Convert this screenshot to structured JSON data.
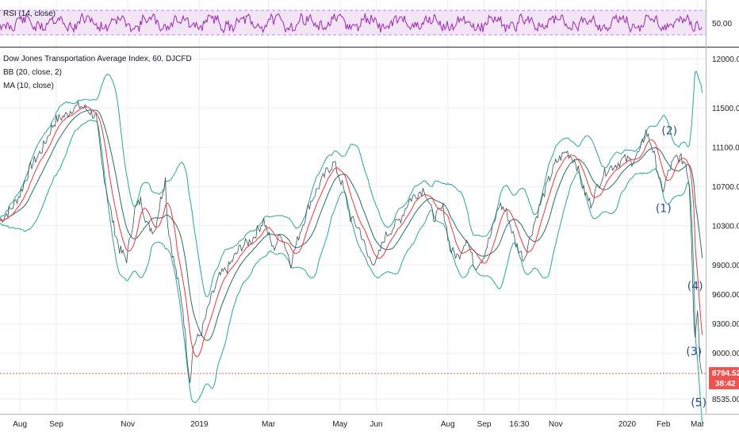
{
  "rsi": {
    "label": "RSI (14, close)",
    "tick": "50.00",
    "color": "#9c27b0",
    "band_fill": "#f3e5f5"
  },
  "legend": {
    "title": "Dow Jones Transportation Average Index, 60, DJCFD",
    "bb": "BB (20, close, 2)",
    "ma": "MA (10, close)"
  },
  "price": {
    "last": "8794.52",
    "countdown": "38:42",
    "tag_color": "#ef5350"
  },
  "colors": {
    "bb_band": "#26a69a",
    "bb_basis": "#2b6a6a",
    "ma": "#e53935",
    "grid": "#eceff2"
  },
  "waves": [
    {
      "label": "(1)",
      "date": "2020-02-01",
      "value": 10440
    },
    {
      "label": "(2)",
      "date": "2020-02-06",
      "value": 11230
    },
    {
      "label": "(3)",
      "date": "2020-02-27",
      "value": 8980
    },
    {
      "label": "(4)",
      "date": "2020-02-28",
      "value": 9650
    },
    {
      "label": "(5)",
      "date": "2020-03-02",
      "value": 8460
    }
  ],
  "chart_data": {
    "type": "line",
    "title": "Dow Jones Transportation Average Index, 60, DJCFD",
    "ylim": [
      8400,
      12100
    ],
    "yticks": [
      12000,
      11500,
      11100,
      10700,
      10300,
      9900,
      9600,
      9300,
      9000,
      8535
    ],
    "ytick_labels": [
      "12000.00",
      "11500.00",
      "11100.00",
      "10700.00",
      "10300.00",
      "9900.00",
      "9600.00",
      "9300.00",
      "9000.00",
      "8535.00"
    ],
    "xlim": [
      "2018-07-15",
      "2020-03-08"
    ],
    "xticks": [
      {
        "label": "Aug",
        "date": "2018-08-01"
      },
      {
        "label": "Sep",
        "date": "2018-09-01"
      },
      {
        "label": "Nov",
        "date": "2018-11-01"
      },
      {
        "label": "2019",
        "date": "2019-01-01"
      },
      {
        "label": "Mar",
        "date": "2019-03-01"
      },
      {
        "label": "May",
        "date": "2019-05-01"
      },
      {
        "label": "Jun",
        "date": "2019-06-01"
      },
      {
        "label": "Aug",
        "date": "2019-08-01"
      },
      {
        "label": "Sep",
        "date": "2019-09-01"
      },
      {
        "label": "16:30",
        "date": "2019-10-01"
      },
      {
        "label": "Nov",
        "date": "2019-11-01"
      },
      {
        "label": "2020",
        "date": "2020-01-01"
      },
      {
        "label": "Feb",
        "date": "2020-02-01"
      },
      {
        "label": "Mar",
        "date": "2020-03-01"
      }
    ],
    "price_points": [
      [
        "2018-07-15",
        10350
      ],
      [
        "2018-07-25",
        10480
      ],
      [
        "2018-08-01",
        10620
      ],
      [
        "2018-08-10",
        10900
      ],
      [
        "2018-08-20",
        11080
      ],
      [
        "2018-08-28",
        11300
      ],
      [
        "2018-09-01",
        11380
      ],
      [
        "2018-09-10",
        11430
      ],
      [
        "2018-09-15",
        11500
      ],
      [
        "2018-09-22",
        11520
      ],
      [
        "2018-09-29",
        11470
      ],
      [
        "2018-10-05",
        11400
      ],
      [
        "2018-10-10",
        10920
      ],
      [
        "2018-10-15",
        10600
      ],
      [
        "2018-10-20",
        10300
      ],
      [
        "2018-10-25",
        10060
      ],
      [
        "2018-10-31",
        9960
      ],
      [
        "2018-11-07",
        10460
      ],
      [
        "2018-11-12",
        10560
      ],
      [
        "2018-11-18",
        10300
      ],
      [
        "2018-11-24",
        10250
      ],
      [
        "2018-11-29",
        10560
      ],
      [
        "2018-12-03",
        10780
      ],
      [
        "2018-12-05",
        10320
      ],
      [
        "2018-12-10",
        9960
      ],
      [
        "2018-12-14",
        9720
      ],
      [
        "2018-12-18",
        9460
      ],
      [
        "2018-12-21",
        9060
      ],
      [
        "2018-12-24",
        8720
      ],
      [
        "2018-12-27",
        9080
      ],
      [
        "2019-01-03",
        9220
      ],
      [
        "2019-01-10",
        9520
      ],
      [
        "2019-01-18",
        9780
      ],
      [
        "2019-01-26",
        9880
      ],
      [
        "2019-02-05",
        10080
      ],
      [
        "2019-02-15",
        10160
      ],
      [
        "2019-02-25",
        10360
      ],
      [
        "2019-03-05",
        10060
      ],
      [
        "2019-03-12",
        10220
      ],
      [
        "2019-03-20",
        9920
      ],
      [
        "2019-03-28",
        10240
      ],
      [
        "2019-04-05",
        10520
      ],
      [
        "2019-04-12",
        10680
      ],
      [
        "2019-04-20",
        10860
      ],
      [
        "2019-04-26",
        10940
      ],
      [
        "2019-05-03",
        10720
      ],
      [
        "2019-05-10",
        10380
      ],
      [
        "2019-05-18",
        10260
      ],
      [
        "2019-05-25",
        9980
      ],
      [
        "2019-06-01",
        9920
      ],
      [
        "2019-06-08",
        10180
      ],
      [
        "2019-06-15",
        10280
      ],
      [
        "2019-06-22",
        10380
      ],
      [
        "2019-06-29",
        10560
      ],
      [
        "2019-07-05",
        10620
      ],
      [
        "2019-07-12",
        10680
      ],
      [
        "2019-07-20",
        10380
      ],
      [
        "2019-07-28",
        10480
      ],
      [
        "2019-08-03",
        10060
      ],
      [
        "2019-08-10",
        9980
      ],
      [
        "2019-08-17",
        10180
      ],
      [
        "2019-08-24",
        9880
      ],
      [
        "2019-08-31",
        9980
      ],
      [
        "2019-09-07",
        10220
      ],
      [
        "2019-09-14",
        10520
      ],
      [
        "2019-09-20",
        10440
      ],
      [
        "2019-09-28",
        10120
      ],
      [
        "2019-10-05",
        9960
      ],
      [
        "2019-10-12",
        10260
      ],
      [
        "2019-10-19",
        10520
      ],
      [
        "2019-10-26",
        10760
      ],
      [
        "2019-11-01",
        10940
      ],
      [
        "2019-11-10",
        11060
      ],
      [
        "2019-11-18",
        10960
      ],
      [
        "2019-11-25",
        10660
      ],
      [
        "2019-12-01",
        10520
      ],
      [
        "2019-12-08",
        10740
      ],
      [
        "2019-12-15",
        10880
      ],
      [
        "2019-12-22",
        10920
      ],
      [
        "2019-12-29",
        10980
      ],
      [
        "2020-01-05",
        10960
      ],
      [
        "2020-01-12",
        11060
      ],
      [
        "2020-01-17",
        11260
      ],
      [
        "2020-01-22",
        11120
      ],
      [
        "2020-01-27",
        10860
      ],
      [
        "2020-01-31",
        10640
      ],
      [
        "2020-02-04",
        10800
      ],
      [
        "2020-02-08",
        10920
      ],
      [
        "2020-02-12",
        11000
      ],
      [
        "2020-02-16",
        10980
      ],
      [
        "2020-02-20",
        10940
      ],
      [
        "2020-02-23",
        10720
      ],
      [
        "2020-02-25",
        10140
      ],
      [
        "2020-02-27",
        9320
      ],
      [
        "2020-02-28",
        9160
      ],
      [
        "2020-03-01",
        9480
      ],
      [
        "2020-03-03",
        8960
      ],
      [
        "2020-03-05",
        8795
      ]
    ]
  }
}
